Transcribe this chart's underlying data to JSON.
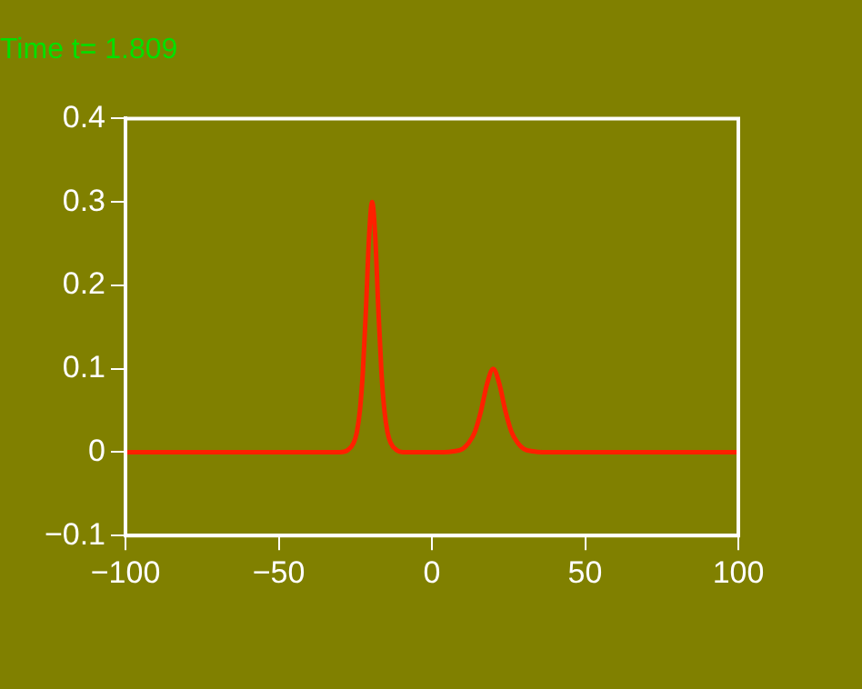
{
  "chart_data": {
    "type": "line",
    "title": "Time t= 1.809",
    "x": [
      -100,
      -40,
      -30,
      -27.5,
      -25.5,
      -24.5,
      -23.5,
      -22.5,
      -21.5,
      -20.5,
      -19.5,
      -18.5,
      -17.5,
      -16.5,
      -15.5,
      -14.5,
      -13.5,
      -11.5,
      -9.5,
      -5,
      0,
      4,
      7,
      10,
      12,
      14,
      16,
      18,
      20,
      22,
      24,
      26,
      28,
      30,
      33,
      36,
      45,
      100
    ],
    "series": [
      {
        "color": "#ff2000",
        "values": [
          0,
          0,
          0,
          0.0024,
          0.0115,
          0.024,
          0.05,
          0.098,
          0.173,
          0.259,
          0.3,
          0.259,
          0.173,
          0.098,
          0.05,
          0.024,
          0.0115,
          0.0024,
          0,
          0,
          0,
          0,
          0.001,
          0.004,
          0.011,
          0.024,
          0.049,
          0.082,
          0.1,
          0.082,
          0.049,
          0.024,
          0.011,
          0.004,
          0.001,
          0,
          0,
          0
        ]
      }
    ],
    "xlim": [
      -100,
      100
    ],
    "xticks": [
      -100,
      -50,
      0,
      50,
      100
    ],
    "ylim": [
      -0.1,
      0.4
    ],
    "yticks": [
      -0.1,
      0,
      0.1,
      0.2,
      0.3,
      0.4
    ],
    "grid": false,
    "legend": false,
    "marker": "none",
    "line_style": "solid"
  }
}
